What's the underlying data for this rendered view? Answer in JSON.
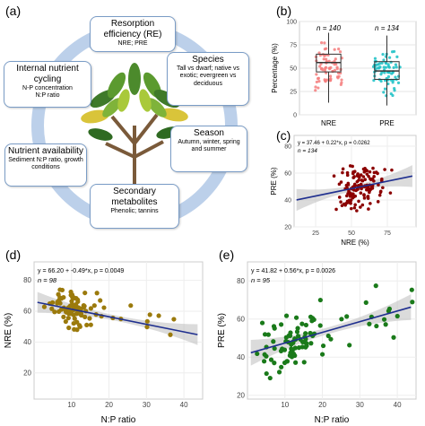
{
  "panels": {
    "a": "(a)",
    "b": "(b)",
    "c": "(c)",
    "d": "(d)",
    "e": "(e)"
  },
  "diagram": {
    "re": {
      "title": "Resorption efficiency (RE)",
      "sub": "NRE; PRE"
    },
    "species": {
      "title": "Species",
      "sub": "Tall vs dwarf; native vs exotic; evergreen vs deciduous"
    },
    "season": {
      "title": "Season",
      "sub": "Autumn, winter, spring and summer"
    },
    "secondary": {
      "title": "Secondary metabolites",
      "sub": "Phenolic; tannins"
    },
    "nutrient": {
      "title": "Nutrient availability",
      "sub": "Sediment N:P ratio, growth conditions"
    },
    "internal": {
      "title": "Internal nutrient cycling",
      "sub1": "N-P concentration",
      "sub2": "N:P ratio"
    },
    "colors": {
      "arrow": "#bcd0ea",
      "box_border": "#7a9cc6"
    }
  },
  "chart_data": [
    {
      "id": "b",
      "type": "box",
      "ylabel": "Percentage (%)",
      "ylim": [
        0,
        100
      ],
      "yticks": [
        0,
        25,
        50,
        75,
        100
      ],
      "categories": [
        "NRE",
        "PRE"
      ],
      "n_labels": [
        "n = 140",
        "n = 134"
      ],
      "boxes": [
        {
          "name": "NRE",
          "min": 13,
          "q1": 46,
          "median": 56,
          "q3": 65,
          "max": 88,
          "color": "#f47c7c"
        },
        {
          "name": "PRE",
          "min": 10,
          "q1": 38,
          "median": 47,
          "q3": 57,
          "max": 85,
          "color": "#19bfc4"
        }
      ],
      "grid": true
    },
    {
      "id": "c",
      "type": "scatter",
      "xlabel": "NRE (%)",
      "ylabel": "PRE (%)",
      "equation": "y = 37.46 + 0.22*x, p = 0.0262",
      "n_label": "n = 134",
      "xlim": [
        10,
        95
      ],
      "ylim": [
        20,
        88
      ],
      "xticks": [
        25,
        50,
        75
      ],
      "yticks": [
        20,
        40,
        60,
        80
      ],
      "fit": {
        "intercept": 37.46,
        "slope": 0.22,
        "ci": 6
      },
      "point_color": "#8b0000",
      "line_color": "#1f2f8f",
      "n_points": 134,
      "seed": 7,
      "noise": 14,
      "x_center": 58,
      "x_spread": 15
    },
    {
      "id": "d",
      "type": "scatter",
      "xlabel": "N:P ratio",
      "ylabel": "NRE (%)",
      "equation": "y = 66.20 + -0.49*x, p = 0.0049",
      "n_label": "n = 98",
      "xlim": [
        0,
        45
      ],
      "ylim": [
        3,
        92
      ],
      "xticks": [
        10,
        20,
        30,
        40
      ],
      "yticks": [
        20,
        40,
        60,
        80
      ],
      "fit": {
        "intercept": 66.2,
        "slope": -0.49,
        "ci": 5
      },
      "point_color": "#9b7a0c",
      "line_color": "#1f2f8f",
      "n_points": 98,
      "seed": 11,
      "noise": 10,
      "x_center": 10,
      "x_spread": 5
    },
    {
      "id": "e",
      "type": "scatter",
      "xlabel": "N:P ratio",
      "ylabel": "PRE (%)",
      "equation": "y = 41.82 + 0.56*x, p = 0.0026",
      "n_label": "n = 95",
      "xlim": [
        0,
        45
      ],
      "ylim": [
        18,
        90
      ],
      "xticks": [
        10,
        20,
        30,
        40
      ],
      "yticks": [
        20,
        40,
        60,
        80
      ],
      "fit": {
        "intercept": 41.82,
        "slope": 0.56,
        "ci": 5
      },
      "point_color": "#1a7a1a",
      "line_color": "#1f2f8f",
      "n_points": 95,
      "seed": 23,
      "noise": 14,
      "x_center": 12,
      "x_spread": 8
    }
  ]
}
